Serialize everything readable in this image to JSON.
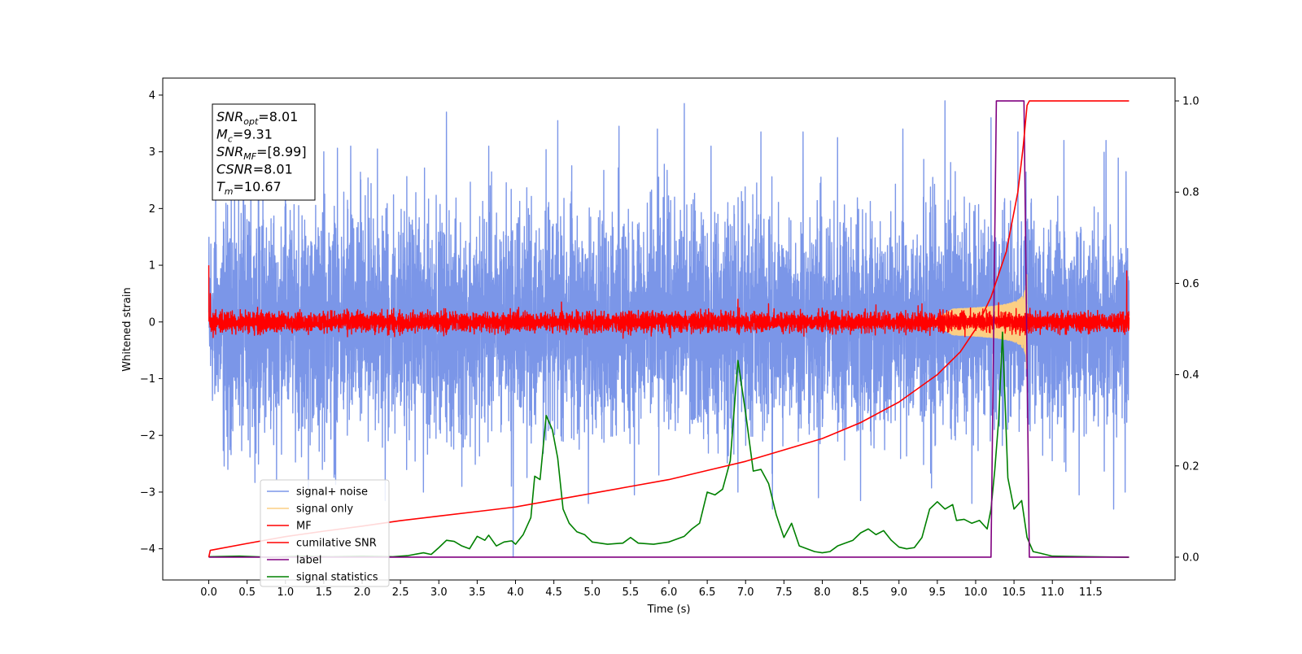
{
  "chart_data": {
    "type": "line",
    "xlabel": "Time (s)",
    "ylabel": "Whitened strain",
    "xlim": [
      -0.6,
      12.6
    ],
    "ylim": [
      -4.55,
      4.3
    ],
    "y2lim": [
      -0.05,
      1.05
    ],
    "xticks": [
      "0.0",
      "0.5",
      "1.0",
      "1.5",
      "2.0",
      "2.5",
      "3.0",
      "3.5",
      "4.0",
      "4.5",
      "5.0",
      "5.5",
      "6.0",
      "6.5",
      "7.0",
      "7.5",
      "8.0",
      "8.5",
      "9.0",
      "9.5",
      "10.0",
      "10.5",
      "11.0",
      "11.5"
    ],
    "yticks": [
      4,
      3,
      2,
      1,
      0,
      -1,
      -2,
      -3,
      -4
    ],
    "y2ticks": [
      1.0,
      0.8,
      0.6,
      0.4,
      0.2,
      0.0
    ],
    "grid": false,
    "legend_position": "lower-left",
    "annotation": [
      {
        "name": "SNR",
        "sub": "opt",
        "value": "=8.01"
      },
      {
        "name": "M",
        "sub": "c",
        "value": "=9.31"
      },
      {
        "name": "SNR",
        "sub": "MF",
        "value": "=[8.99]"
      },
      {
        "name": "CSNR",
        "sub": "",
        "value": "=8.01"
      },
      {
        "name": "T",
        "sub": "m",
        "value": "=10.67"
      }
    ],
    "series": [
      {
        "name": "signal+ noise",
        "axis": "left",
        "color": "#7b96e8",
        "kind": "noise",
        "duration": 12.0,
        "envelope": 1.75,
        "peaks": [
          [
            0.25,
            -2.6
          ],
          [
            0.55,
            2.9
          ],
          [
            1.0,
            3.0
          ],
          [
            1.3,
            -2.95
          ],
          [
            1.5,
            3.0
          ],
          [
            1.85,
            3.1
          ],
          [
            2.2,
            3.05
          ],
          [
            2.3,
            -3.15
          ],
          [
            2.8,
            -3.0
          ],
          [
            3.1,
            3.7
          ],
          [
            3.3,
            -2.9
          ],
          [
            3.65,
            3.1
          ],
          [
            3.97,
            -4.15
          ],
          [
            4.55,
            3.55
          ],
          [
            4.95,
            -3.2
          ],
          [
            5.35,
            3.45
          ],
          [
            5.55,
            -3.05
          ],
          [
            5.85,
            3.4
          ],
          [
            6.2,
            3.85
          ],
          [
            6.55,
            3.1
          ],
          [
            6.9,
            -3.0
          ],
          [
            7.2,
            3.35
          ],
          [
            7.35,
            -3.3
          ],
          [
            7.75,
            3.35
          ],
          [
            7.95,
            -3.1
          ],
          [
            8.2,
            3.25
          ],
          [
            8.5,
            -3.15
          ],
          [
            9.05,
            3.4
          ],
          [
            9.6,
            3.9
          ],
          [
            9.95,
            -3.2
          ],
          [
            10.2,
            3.6
          ],
          [
            10.55,
            3.35
          ],
          [
            11.15,
            3.2
          ],
          [
            11.35,
            -3.05
          ],
          [
            11.7,
            3.2
          ],
          [
            11.8,
            -3.3
          ],
          [
            11.95,
            -3.0
          ],
          [
            11.96,
            2.65
          ]
        ]
      },
      {
        "name": "signal only",
        "axis": "left",
        "color": "#fbcf84",
        "kind": "chirp",
        "t_start": 9.4,
        "t_end": 10.67,
        "max_amplitude": 0.9
      },
      {
        "name": "MF",
        "axis": "left",
        "color": "#ff0000",
        "kind": "noise",
        "duration": 12.0,
        "envelope": 0.16,
        "peaks": [
          [
            0.0,
            1.0
          ],
          [
            0.02,
            0.5
          ],
          [
            4.6,
            0.35
          ],
          [
            6.9,
            0.4
          ],
          [
            7.3,
            0.32
          ],
          [
            8.7,
            0.3
          ],
          [
            9.3,
            0.32
          ],
          [
            10.3,
            0.34
          ],
          [
            11.97,
            0.9
          ]
        ]
      },
      {
        "name": "cumilative SNR",
        "axis": "right",
        "color": "#ff0000",
        "points": [
          [
            0.0,
            0.0
          ],
          [
            0.02,
            0.015
          ],
          [
            0.5,
            0.03
          ],
          [
            1.0,
            0.045
          ],
          [
            1.5,
            0.057
          ],
          [
            2.0,
            0.068
          ],
          [
            2.5,
            0.08
          ],
          [
            3.0,
            0.09
          ],
          [
            3.5,
            0.1
          ],
          [
            4.0,
            0.11
          ],
          [
            4.5,
            0.125
          ],
          [
            5.0,
            0.14
          ],
          [
            5.5,
            0.155
          ],
          [
            6.0,
            0.17
          ],
          [
            6.5,
            0.19
          ],
          [
            7.0,
            0.21
          ],
          [
            7.5,
            0.235
          ],
          [
            8.0,
            0.26
          ],
          [
            8.5,
            0.295
          ],
          [
            9.0,
            0.34
          ],
          [
            9.5,
            0.4
          ],
          [
            9.8,
            0.45
          ],
          [
            10.0,
            0.5
          ],
          [
            10.2,
            0.57
          ],
          [
            10.4,
            0.67
          ],
          [
            10.55,
            0.8
          ],
          [
            10.62,
            0.9
          ],
          [
            10.67,
            0.99
          ],
          [
            10.7,
            1.0
          ],
          [
            12.0,
            1.0
          ]
        ]
      },
      {
        "name": "label",
        "axis": "right",
        "color": "#800080",
        "points": [
          [
            0.0,
            0.0
          ],
          [
            10.2,
            0.0
          ],
          [
            10.27,
            1.0
          ],
          [
            10.63,
            1.0
          ],
          [
            10.7,
            0.0
          ],
          [
            12.0,
            0.0
          ]
        ]
      },
      {
        "name": "signal statistics",
        "axis": "left",
        "color": "#008000",
        "points": [
          [
            0.0,
            -4.14
          ],
          [
            0.4,
            -4.13
          ],
          [
            0.8,
            -4.15
          ],
          [
            1.2,
            -4.13
          ],
          [
            1.6,
            -4.14
          ],
          [
            2.0,
            -4.13
          ],
          [
            2.4,
            -4.14
          ],
          [
            2.6,
            -4.12
          ],
          [
            2.8,
            -4.07
          ],
          [
            2.9,
            -4.1
          ],
          [
            3.0,
            -3.98
          ],
          [
            3.1,
            -3.85
          ],
          [
            3.2,
            -3.87
          ],
          [
            3.3,
            -3.95
          ],
          [
            3.4,
            -4.0
          ],
          [
            3.5,
            -3.78
          ],
          [
            3.6,
            -3.85
          ],
          [
            3.65,
            -3.76
          ],
          [
            3.75,
            -3.95
          ],
          [
            3.85,
            -3.88
          ],
          [
            3.95,
            -3.86
          ],
          [
            4.0,
            -3.92
          ],
          [
            4.1,
            -3.75
          ],
          [
            4.2,
            -3.45
          ],
          [
            4.25,
            -2.72
          ],
          [
            4.32,
            -2.78
          ],
          [
            4.4,
            -1.65
          ],
          [
            4.48,
            -1.9
          ],
          [
            4.55,
            -2.4
          ],
          [
            4.62,
            -3.3
          ],
          [
            4.7,
            -3.55
          ],
          [
            4.8,
            -3.7
          ],
          [
            4.9,
            -3.75
          ],
          [
            5.0,
            -3.88
          ],
          [
            5.2,
            -3.92
          ],
          [
            5.4,
            -3.9
          ],
          [
            5.5,
            -3.8
          ],
          [
            5.6,
            -3.9
          ],
          [
            5.8,
            -3.92
          ],
          [
            6.0,
            -3.88
          ],
          [
            6.2,
            -3.78
          ],
          [
            6.3,
            -3.65
          ],
          [
            6.4,
            -3.55
          ],
          [
            6.5,
            -3.0
          ],
          [
            6.6,
            -3.05
          ],
          [
            6.7,
            -2.95
          ],
          [
            6.8,
            -2.45
          ],
          [
            6.9,
            -0.68
          ],
          [
            7.0,
            -1.6
          ],
          [
            7.1,
            -2.63
          ],
          [
            7.2,
            -2.6
          ],
          [
            7.3,
            -2.85
          ],
          [
            7.4,
            -3.4
          ],
          [
            7.5,
            -3.8
          ],
          [
            7.6,
            -3.55
          ],
          [
            7.7,
            -3.95
          ],
          [
            7.8,
            -4.0
          ],
          [
            7.9,
            -4.05
          ],
          [
            8.0,
            -4.07
          ],
          [
            8.1,
            -4.05
          ],
          [
            8.2,
            -3.95
          ],
          [
            8.3,
            -3.9
          ],
          [
            8.4,
            -3.85
          ],
          [
            8.5,
            -3.72
          ],
          [
            8.6,
            -3.65
          ],
          [
            8.7,
            -3.75
          ],
          [
            8.8,
            -3.68
          ],
          [
            8.9,
            -3.85
          ],
          [
            9.0,
            -3.97
          ],
          [
            9.1,
            -4.0
          ],
          [
            9.2,
            -3.98
          ],
          [
            9.3,
            -3.8
          ],
          [
            9.4,
            -3.3
          ],
          [
            9.5,
            -3.17
          ],
          [
            9.6,
            -3.3
          ],
          [
            9.7,
            -3.22
          ],
          [
            9.75,
            -3.5
          ],
          [
            9.85,
            -3.48
          ],
          [
            9.95,
            -3.55
          ],
          [
            10.05,
            -3.5
          ],
          [
            10.15,
            -3.65
          ],
          [
            10.2,
            -3.3
          ],
          [
            10.25,
            -2.6
          ],
          [
            10.3,
            -1.72
          ],
          [
            10.35,
            -0.18
          ],
          [
            10.42,
            -2.75
          ],
          [
            10.5,
            -3.3
          ],
          [
            10.6,
            -3.15
          ],
          [
            10.67,
            -3.8
          ],
          [
            10.75,
            -4.05
          ],
          [
            10.85,
            -4.08
          ],
          [
            11.0,
            -4.13
          ],
          [
            11.5,
            -4.14
          ],
          [
            12.0,
            -4.15
          ]
        ]
      }
    ]
  }
}
